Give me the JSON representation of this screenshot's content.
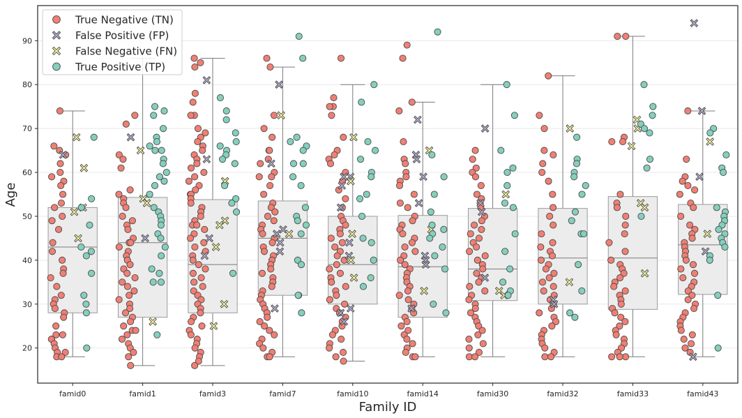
{
  "chart_data": {
    "type": "box-strip",
    "xlabel": "Family ID",
    "ylabel": "Age",
    "ylim": [
      12,
      98
    ],
    "yticks": [
      20,
      30,
      40,
      50,
      60,
      70,
      80,
      90
    ],
    "grid": "horizontal",
    "legend_placement": "top-left",
    "categories": [
      "famid0",
      "famid1",
      "famid3",
      "famid7",
      "famid10",
      "famid14",
      "famid30",
      "famid32",
      "famid33",
      "famid43"
    ],
    "legend": [
      {
        "key": "TN",
        "label": "True Negative (TN)",
        "color": "#f07f74",
        "marker": "circle"
      },
      {
        "key": "FP",
        "label": "False Positive (FP)",
        "color": "#b3afd0",
        "marker": "x"
      },
      {
        "key": "FN",
        "label": "False Negative (FN)",
        "color": "#fbfb9c",
        "marker": "x"
      },
      {
        "key": "TP",
        "label": "True Positive (TP)",
        "color": "#84cfbd",
        "marker": "circle"
      }
    ],
    "boxes": [
      {
        "category": "famid0",
        "whisker_low": 18,
        "q1": 28,
        "median": 43,
        "q3": 52,
        "whisker_high": 74
      },
      {
        "category": "famid1",
        "whisker_low": 16,
        "q1": 27,
        "median": 44,
        "q3": 54.3,
        "whisker_high": 86
      },
      {
        "category": "famid3",
        "whisker_low": 16,
        "q1": 28,
        "median": 39,
        "q3": 53.8,
        "whisker_high": 86
      },
      {
        "category": "famid7",
        "whisker_low": 18,
        "q1": 32,
        "median": 45,
        "q3": 53.5,
        "whisker_high": 84
      },
      {
        "category": "famid10",
        "whisker_low": 17,
        "q1": 30,
        "median": 39,
        "q3": 50,
        "whisker_high": 80
      },
      {
        "category": "famid14",
        "whisker_low": 18,
        "q1": 27,
        "median": 38.5,
        "q3": 50.2,
        "whisker_high": 76
      },
      {
        "category": "famid30",
        "whisker_low": 18,
        "q1": 30.8,
        "median": 38,
        "q3": 51.8,
        "whisker_high": 80
      },
      {
        "category": "famid32",
        "whisker_low": 18,
        "q1": 30,
        "median": 40.5,
        "q3": 51.8,
        "whisker_high": 82
      },
      {
        "category": "famid33",
        "whisker_low": 18,
        "q1": 28.8,
        "median": 40.5,
        "q3": 54.5,
        "whisker_high": 91
      },
      {
        "category": "famid43",
        "whisker_low": 18,
        "q1": 32.2,
        "median": 43.5,
        "q3": 52.7,
        "whisker_high": 74
      }
    ],
    "points": {
      "famid0": {
        "TN": [
          74,
          66,
          65,
          64,
          62,
          60,
          59,
          58,
          57,
          55,
          53,
          52,
          50,
          49,
          47,
          44,
          42,
          40,
          38,
          37,
          36,
          34,
          32,
          31,
          30,
          29,
          28,
          27,
          25,
          23,
          23,
          22,
          22,
          21,
          20,
          19,
          19,
          18,
          18
        ],
        "FP": [
          64
        ],
        "FN": [
          68,
          61,
          52,
          51,
          45
        ],
        "TP": [
          68,
          54,
          52,
          48,
          43,
          42,
          41,
          37,
          32,
          30,
          28,
          20
        ]
      },
      "famid1": {
        "TN": [
          73,
          71,
          64,
          63,
          61,
          56,
          55,
          54,
          53,
          52,
          50,
          49,
          48,
          47,
          45,
          44,
          44,
          43,
          42,
          41,
          40,
          39,
          38,
          37,
          36,
          35,
          34,
          33,
          32,
          31,
          30,
          29,
          28,
          27,
          26,
          25,
          24,
          24,
          23,
          22,
          21,
          20,
          19,
          18,
          16
        ],
        "FP": [
          68,
          45
        ],
        "FN": [
          65,
          54,
          53,
          26
        ],
        "TP": [
          75,
          74,
          73,
          70,
          68,
          67,
          66,
          65,
          65,
          63,
          62,
          60,
          59,
          58,
          57,
          55,
          52,
          51,
          50,
          49,
          48,
          46,
          45,
          43,
          41,
          38,
          37,
          35,
          35,
          23
        ]
      },
      "famid3": {
        "TN": [
          86,
          85,
          84,
          78,
          76,
          73,
          73,
          70,
          69,
          68,
          67,
          66,
          65,
          64,
          63,
          62,
          61,
          60,
          59,
          58,
          57,
          56,
          55,
          55,
          54,
          53,
          52,
          51,
          50,
          49,
          48,
          48,
          47,
          46,
          45,
          44,
          43,
          42,
          41,
          40,
          39,
          38,
          37,
          36,
          35,
          34,
          33,
          32,
          31,
          30,
          29,
          28,
          27,
          26,
          25,
          24,
          23,
          22,
          21,
          20,
          19,
          18,
          17,
          16
        ],
        "FP": [
          81,
          63,
          45,
          41
        ],
        "FN": [
          58,
          49,
          48,
          43,
          30,
          25
        ],
        "TP": [
          77,
          74,
          72,
          69,
          67,
          66,
          65,
          64,
          63,
          62,
          57,
          54,
          53,
          51,
          37
        ]
      },
      "famid7": {
        "TN": [
          86,
          84,
          73,
          70,
          68,
          65,
          65,
          63,
          62,
          60,
          59,
          59,
          57,
          55,
          53,
          52,
          51,
          50,
          49,
          48,
          47,
          46,
          45,
          44,
          43,
          42,
          41,
          40,
          39,
          38,
          37,
          36,
          35,
          34,
          33,
          32,
          31,
          30,
          29,
          28,
          27,
          26,
          25,
          24,
          23,
          22,
          21,
          20,
          19,
          18,
          18
        ],
        "FP": [
          80,
          62,
          47,
          46,
          44,
          42,
          29
        ],
        "FN": [
          73,
          46
        ],
        "TP": [
          91,
          86,
          68,
          67,
          66,
          65,
          62,
          62,
          59,
          57,
          52,
          50,
          49,
          48,
          46,
          40,
          39,
          32,
          32,
          28
        ]
      },
      "famid10": {
        "TN": [
          86,
          77,
          75,
          75,
          73,
          68,
          65,
          64,
          63,
          62,
          60,
          58,
          56,
          54,
          52,
          50,
          49,
          48,
          47,
          46,
          45,
          44,
          43,
          42,
          41,
          40,
          39,
          38,
          37,
          36,
          35,
          34,
          33,
          32,
          31,
          30,
          29,
          28,
          27,
          26,
          25,
          24,
          23,
          22,
          21,
          20,
          19,
          18,
          17
        ],
        "FP": [
          59,
          59,
          57,
          52,
          44,
          41,
          29,
          28,
          26
        ],
        "FN": [
          68,
          58,
          46,
          40,
          36
        ],
        "TP": [
          80,
          76,
          67,
          65,
          63,
          60,
          59,
          55,
          54,
          50,
          45,
          44,
          40,
          36,
          34
        ]
      },
      "famid14": {
        "TN": [
          89,
          86,
          76,
          74,
          67,
          63,
          62,
          60,
          59,
          58,
          57,
          55,
          53,
          52,
          50,
          49,
          48,
          47,
          46,
          45,
          44,
          43,
          42,
          41,
          40,
          39,
          38,
          37,
          36,
          35,
          34,
          33,
          32,
          31,
          30,
          29,
          28,
          27,
          26,
          25,
          24,
          23,
          22,
          21,
          20,
          19,
          18,
          18
        ],
        "FP": [
          72,
          64,
          63,
          59,
          53,
          41,
          40,
          39,
          29
        ],
        "FN": [
          65,
          47,
          33
        ],
        "TP": [
          92,
          64,
          59,
          55,
          51,
          48,
          47,
          46,
          45,
          43,
          41,
          38,
          30,
          28
        ]
      },
      "famid30": {
        "TN": [
          65,
          63,
          61,
          60,
          59,
          57,
          55,
          54,
          53,
          52,
          50,
          49,
          48,
          47,
          46,
          45,
          44,
          43,
          42,
          41,
          40,
          39,
          38,
          37,
          36,
          35,
          34,
          33,
          32,
          31,
          30,
          29,
          28,
          27,
          26,
          25,
          24,
          23,
          22,
          21,
          20,
          19,
          18,
          18
        ],
        "FP": [
          70,
          53,
          51,
          36
        ],
        "FN": [
          55,
          33,
          32
        ],
        "TP": [
          80,
          73,
          65,
          61,
          60,
          57,
          53,
          52,
          46,
          42,
          38,
          35,
          33,
          32
        ]
      },
      "famid32": {
        "TN": [
          82,
          73,
          70,
          65,
          64,
          62,
          60,
          58,
          55,
          52,
          50,
          48,
          46,
          44,
          43,
          42,
          41,
          40,
          39,
          38,
          37,
          36,
          35,
          34,
          33,
          32,
          31,
          30,
          29,
          28,
          27,
          26,
          25,
          24,
          23,
          22,
          21,
          20,
          19,
          18,
          18
        ],
        "FP": [
          31,
          30
        ],
        "FN": [
          70,
          35
        ],
        "TP": [
          68,
          63,
          62,
          60,
          59,
          57,
          55,
          51,
          49,
          46,
          46,
          39,
          33,
          28,
          27
        ]
      },
      "famid33": {
        "TN": [
          91,
          91,
          68,
          67,
          67,
          55,
          53,
          52,
          50,
          48,
          46,
          44,
          42,
          40,
          39,
          38,
          37,
          36,
          35,
          34,
          33,
          32,
          31,
          30,
          29,
          28,
          27,
          26,
          25,
          24,
          23,
          22,
          21,
          20,
          19,
          18,
          18,
          18
        ],
        "FP": [],
        "FN": [
          72,
          70,
          66,
          53,
          52,
          37
        ],
        "TP": [
          80,
          75,
          73,
          71,
          70,
          69,
          63,
          61,
          50
        ]
      },
      "famid43": {
        "TN": [
          74,
          63,
          59,
          58,
          57,
          56,
          55,
          53,
          52,
          50,
          48,
          47,
          46,
          45,
          44,
          43,
          42,
          41,
          40,
          39,
          38,
          37,
          36,
          35,
          34,
          33,
          32,
          31,
          30,
          29,
          28,
          27,
          26,
          25,
          24,
          23,
          22,
          21,
          20,
          19
        ],
        "FP": [
          94,
          74,
          59,
          42,
          18
        ],
        "FN": [
          67,
          46
        ],
        "TP": [
          70,
          69,
          64,
          61,
          60,
          52,
          51,
          50,
          49,
          48,
          47,
          46,
          45,
          44,
          43,
          41,
          40,
          32,
          20
        ]
      }
    }
  }
}
